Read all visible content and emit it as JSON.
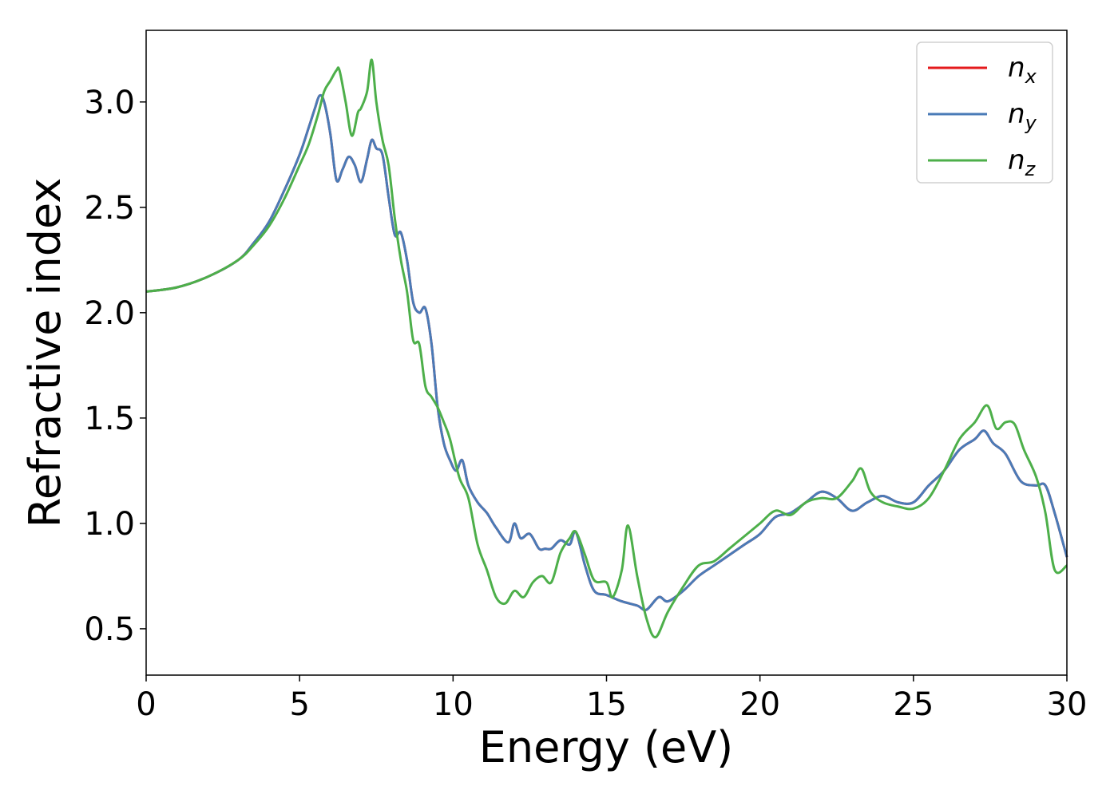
{
  "chart_data": {
    "type": "line",
    "xlabel": "Energy (eV)",
    "ylabel": "Refractive index",
    "xlim": [
      0,
      30
    ],
    "ylim": [
      0.28,
      3.34
    ],
    "xticks": [
      0,
      5,
      10,
      15,
      20,
      25,
      30
    ],
    "xtick_labels": [
      "0",
      "5",
      "10",
      "15",
      "20",
      "25",
      "30"
    ],
    "yticks": [
      0.5,
      1.0,
      1.5,
      2.0,
      2.5,
      3.0
    ],
    "ytick_labels": [
      "0.5",
      "1.0",
      "1.5",
      "2.0",
      "2.5",
      "3.0"
    ],
    "grid": false,
    "legend_position": "top-right",
    "series": [
      {
        "name": "n_x",
        "legend_base": "n",
        "legend_sub": "x",
        "color": "#e41a1c",
        "x": [
          0,
          1,
          2,
          3,
          3.5,
          4,
          4.5,
          5,
          5.3,
          5.5,
          5.65,
          5.8,
          6.0,
          6.2,
          6.4,
          6.6,
          6.8,
          7.0,
          7.2,
          7.35,
          7.5,
          7.7,
          7.9,
          8.1,
          8.3,
          8.5,
          8.7,
          8.9,
          9.1,
          9.3,
          9.5,
          9.7,
          9.9,
          10.1,
          10.3,
          10.5,
          10.8,
          11.1,
          11.4,
          11.8,
          12.0,
          12.2,
          12.5,
          12.8,
          13.0,
          13.2,
          13.5,
          13.8,
          14.0,
          14.3,
          14.6,
          15.0,
          15.5,
          16.0,
          16.3,
          16.7,
          17.0,
          17.5,
          18.0,
          18.5,
          19.0,
          19.5,
          20.0,
          20.5,
          21.0,
          21.5,
          22.0,
          22.5,
          23.0,
          23.5,
          24.0,
          24.5,
          25.0,
          25.5,
          26.0,
          26.5,
          27.0,
          27.3,
          27.6,
          28.0,
          28.5,
          29.0,
          29.3,
          29.6,
          30.0
        ],
        "y": [
          2.1,
          2.12,
          2.17,
          2.25,
          2.33,
          2.43,
          2.58,
          2.75,
          2.88,
          2.97,
          3.03,
          3.0,
          2.85,
          2.63,
          2.68,
          2.74,
          2.7,
          2.62,
          2.73,
          2.82,
          2.78,
          2.75,
          2.55,
          2.37,
          2.38,
          2.25,
          2.05,
          2.0,
          2.02,
          1.85,
          1.55,
          1.38,
          1.3,
          1.25,
          1.3,
          1.18,
          1.1,
          1.05,
          0.98,
          0.91,
          1.0,
          0.93,
          0.95,
          0.88,
          0.88,
          0.88,
          0.92,
          0.9,
          0.96,
          0.8,
          0.68,
          0.66,
          0.63,
          0.61,
          0.59,
          0.65,
          0.63,
          0.68,
          0.75,
          0.8,
          0.85,
          0.9,
          0.95,
          1.03,
          1.05,
          1.1,
          1.15,
          1.12,
          1.06,
          1.1,
          1.13,
          1.1,
          1.1,
          1.18,
          1.25,
          1.35,
          1.4,
          1.44,
          1.38,
          1.33,
          1.2,
          1.18,
          1.18,
          1.05,
          0.84
        ]
      },
      {
        "name": "n_y",
        "legend_base": "n",
        "legend_sub": "y",
        "color": "#4a7bb7",
        "x": [
          0,
          1,
          2,
          3,
          3.5,
          4,
          4.5,
          5,
          5.3,
          5.5,
          5.65,
          5.8,
          6.0,
          6.2,
          6.4,
          6.6,
          6.8,
          7.0,
          7.2,
          7.35,
          7.5,
          7.7,
          7.9,
          8.1,
          8.3,
          8.5,
          8.7,
          8.9,
          9.1,
          9.3,
          9.5,
          9.7,
          9.9,
          10.1,
          10.3,
          10.5,
          10.8,
          11.1,
          11.4,
          11.8,
          12.0,
          12.2,
          12.5,
          12.8,
          13.0,
          13.2,
          13.5,
          13.8,
          14.0,
          14.3,
          14.6,
          15.0,
          15.5,
          16.0,
          16.3,
          16.7,
          17.0,
          17.5,
          18.0,
          18.5,
          19.0,
          19.5,
          20.0,
          20.5,
          21.0,
          21.5,
          22.0,
          22.5,
          23.0,
          23.5,
          24.0,
          24.5,
          25.0,
          25.5,
          26.0,
          26.5,
          27.0,
          27.3,
          27.6,
          28.0,
          28.5,
          29.0,
          29.3,
          29.6,
          30.0
        ],
        "y": [
          2.1,
          2.12,
          2.17,
          2.25,
          2.33,
          2.43,
          2.58,
          2.75,
          2.88,
          2.97,
          3.03,
          3.0,
          2.85,
          2.63,
          2.68,
          2.74,
          2.7,
          2.62,
          2.73,
          2.82,
          2.78,
          2.75,
          2.55,
          2.37,
          2.38,
          2.25,
          2.05,
          2.0,
          2.02,
          1.85,
          1.55,
          1.38,
          1.3,
          1.25,
          1.3,
          1.18,
          1.1,
          1.05,
          0.98,
          0.91,
          1.0,
          0.93,
          0.95,
          0.88,
          0.88,
          0.88,
          0.92,
          0.9,
          0.96,
          0.8,
          0.68,
          0.66,
          0.63,
          0.61,
          0.59,
          0.65,
          0.63,
          0.68,
          0.75,
          0.8,
          0.85,
          0.9,
          0.95,
          1.03,
          1.05,
          1.1,
          1.15,
          1.12,
          1.06,
          1.1,
          1.13,
          1.1,
          1.1,
          1.18,
          1.25,
          1.35,
          1.4,
          1.44,
          1.38,
          1.33,
          1.2,
          1.18,
          1.18,
          1.05,
          0.84
        ]
      },
      {
        "name": "n_z",
        "legend_base": "n",
        "legend_sub": "z",
        "color": "#4daf4a",
        "x": [
          0,
          1,
          2,
          3,
          3.5,
          4,
          4.5,
          5,
          5.3,
          5.6,
          5.8,
          6.0,
          6.2,
          6.3,
          6.5,
          6.7,
          6.9,
          7.0,
          7.2,
          7.35,
          7.5,
          7.7,
          7.9,
          8.1,
          8.3,
          8.5,
          8.7,
          8.9,
          9.1,
          9.3,
          9.5,
          9.7,
          9.9,
          10.2,
          10.5,
          10.8,
          11.1,
          11.4,
          11.7,
          12.0,
          12.3,
          12.6,
          12.9,
          13.2,
          13.5,
          13.8,
          14.0,
          14.3,
          14.6,
          15.0,
          15.2,
          15.5,
          15.7,
          16.0,
          16.3,
          16.6,
          17.0,
          17.5,
          18.0,
          18.5,
          19.0,
          19.5,
          20.0,
          20.5,
          21.0,
          21.5,
          22.0,
          22.5,
          23.0,
          23.3,
          23.6,
          24.0,
          24.5,
          25.0,
          25.5,
          26.0,
          26.5,
          27.0,
          27.4,
          27.7,
          28.0,
          28.3,
          28.6,
          29.0,
          29.3,
          29.6,
          30.0
        ],
        "y": [
          2.1,
          2.12,
          2.17,
          2.25,
          2.32,
          2.41,
          2.54,
          2.7,
          2.8,
          2.94,
          3.05,
          3.1,
          3.15,
          3.15,
          3.0,
          2.84,
          2.95,
          2.97,
          3.05,
          3.2,
          3.0,
          2.82,
          2.7,
          2.45,
          2.25,
          2.1,
          1.87,
          1.85,
          1.65,
          1.6,
          1.55,
          1.48,
          1.4,
          1.22,
          1.12,
          0.9,
          0.78,
          0.65,
          0.62,
          0.68,
          0.65,
          0.72,
          0.75,
          0.72,
          0.86,
          0.93,
          0.96,
          0.85,
          0.73,
          0.72,
          0.65,
          0.78,
          0.99,
          0.75,
          0.55,
          0.46,
          0.58,
          0.7,
          0.8,
          0.82,
          0.88,
          0.94,
          1.0,
          1.06,
          1.04,
          1.1,
          1.12,
          1.12,
          1.2,
          1.26,
          1.15,
          1.1,
          1.08,
          1.07,
          1.12,
          1.25,
          1.4,
          1.48,
          1.56,
          1.45,
          1.48,
          1.47,
          1.35,
          1.22,
          1.05,
          0.78,
          0.8
        ]
      }
    ]
  }
}
